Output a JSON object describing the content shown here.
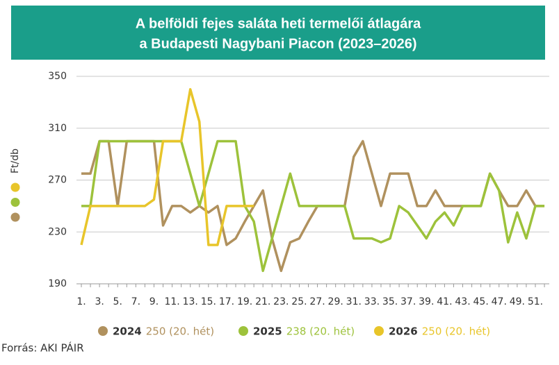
{
  "chart_data": {
    "type": "line",
    "title": [
      "A belföldi fejes saláta heti termelői átlagára",
      "a Budapesti Nagybani Piacon (2023–2026)"
    ],
    "ylabel": "Ft/db",
    "source": "Forrás: AKI PÁIR",
    "categories": [
      "1.",
      null,
      "3.",
      null,
      "5.",
      null,
      "7.",
      null,
      "9.",
      null,
      "11.",
      null,
      "13.",
      null,
      "15.",
      null,
      "17.",
      null,
      "19.",
      null,
      "21.",
      null,
      "23.",
      null,
      "25.",
      null,
      "27.",
      null,
      "29.",
      null,
      "31.",
      null,
      "33.",
      null,
      "35.",
      null,
      "37.",
      null,
      "39.",
      null,
      "41.",
      null,
      "43.",
      null,
      "45.",
      null,
      "47.",
      null,
      "49.",
      null,
      "51.",
      null
    ],
    "ylim": [
      190,
      350
    ],
    "yticks": [
      190,
      230,
      270,
      310,
      350
    ],
    "grid": true,
    "series": [
      {
        "name": "2024",
        "note": "250 (20. hét)",
        "color": "#b0915e",
        "values": [
          275,
          275,
          300,
          300,
          250,
          300,
          300,
          300,
          300,
          235,
          250,
          250,
          245,
          250,
          245,
          250,
          220,
          225,
          238,
          250,
          262,
          225,
          200,
          222,
          225,
          238,
          250,
          250,
          250,
          250,
          288,
          300,
          275,
          250,
          275,
          275,
          275,
          250,
          250,
          262,
          250,
          250,
          250,
          250,
          250,
          275,
          262,
          250,
          250,
          262,
          250,
          250
        ]
      },
      {
        "name": "2025",
        "note": "238 (20. hét)",
        "color": "#9dc23b",
        "values": [
          250,
          250,
          300,
          300,
          300,
          300,
          300,
          300,
          300,
          300,
          300,
          300,
          275,
          250,
          275,
          300,
          300,
          300,
          250,
          238,
          200,
          225,
          250,
          275,
          250,
          250,
          250,
          250,
          250,
          250,
          225,
          225,
          225,
          222,
          225,
          250,
          245,
          235,
          225,
          238,
          245,
          235,
          250,
          250,
          250,
          275,
          262,
          222,
          245,
          225,
          250,
          250
        ]
      },
      {
        "name": "2026",
        "note": "250 (20. hét)",
        "color": "#e8c52a",
        "values": [
          220,
          250,
          250,
          250,
          250,
          250,
          250,
          250,
          255,
          300,
          300,
          300,
          340,
          315,
          220,
          220,
          250,
          250,
          250,
          250,
          null,
          null,
          null,
          null,
          null,
          null,
          null,
          null,
          null,
          null,
          null,
          null,
          null,
          null,
          null,
          null,
          null,
          null,
          null,
          null,
          null,
          null,
          null,
          null,
          null,
          null,
          null,
          null,
          null,
          null,
          null,
          null
        ]
      }
    ]
  }
}
